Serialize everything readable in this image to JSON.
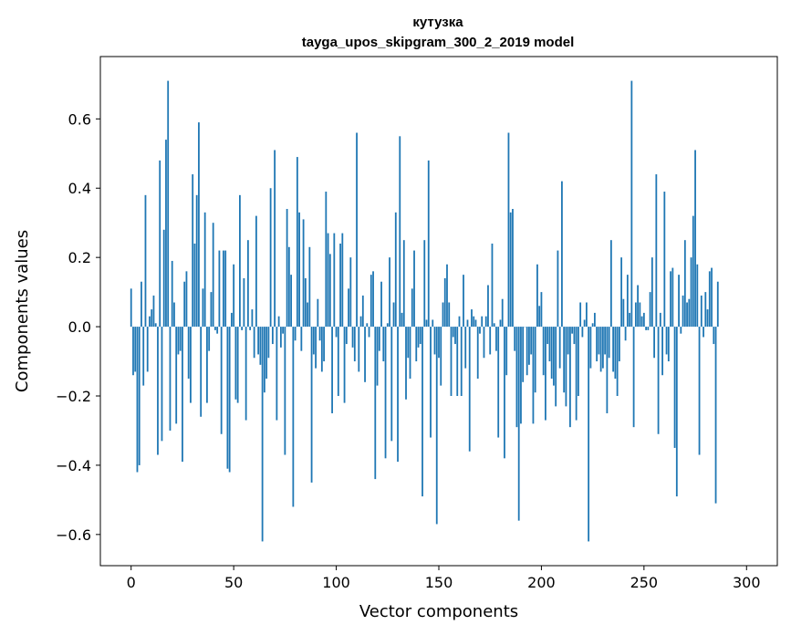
{
  "chart_data": {
    "type": "bar",
    "title_line1": "кутузка",
    "title_line2": "tayga_upos_skipgram_300_2_2019 model",
    "xlabel": "Vector components",
    "ylabel": "Components values",
    "xlim": [
      -15,
      315
    ],
    "ylim": [
      -0.69,
      0.78
    ],
    "xticks": [
      0,
      50,
      100,
      150,
      200,
      250,
      300
    ],
    "xtick_labels": [
      "0",
      "50",
      "100",
      "150",
      "200",
      "250",
      "300"
    ],
    "yticks": [
      -0.6,
      -0.4,
      -0.2,
      0.0,
      0.2,
      0.4,
      0.6
    ],
    "ytick_labels": [
      "−0.6",
      "−0.4",
      "−0.2",
      "0.0",
      "0.2",
      "0.4",
      "0.6"
    ],
    "bar_color": "#1f77b4",
    "values": [
      0.11,
      -0.14,
      -0.13,
      -0.42,
      -0.4,
      0.13,
      -0.17,
      0.38,
      -0.13,
      0.03,
      0.05,
      0.09,
      0.01,
      -0.37,
      0.48,
      -0.33,
      0.28,
      0.54,
      0.71,
      -0.3,
      0.19,
      0.07,
      -0.28,
      -0.08,
      -0.07,
      -0.39,
      0.13,
      0.16,
      -0.15,
      -0.22,
      0.44,
      0.24,
      0.38,
      0.59,
      -0.26,
      0.11,
      0.33,
      -0.22,
      -0.07,
      0.1,
      0.3,
      -0.01,
      -0.02,
      0.22,
      -0.31,
      0.22,
      0.22,
      -0.41,
      -0.42,
      0.04,
      0.18,
      -0.21,
      -0.22,
      0.38,
      -0.01,
      0.14,
      -0.27,
      0.25,
      -0.01,
      0.05,
      -0.09,
      0.32,
      -0.08,
      -0.11,
      -0.62,
      -0.19,
      -0.15,
      -0.09,
      0.4,
      -0.05,
      0.51,
      -0.27,
      0.03,
      -0.06,
      -0.02,
      -0.37,
      0.34,
      0.23,
      0.15,
      -0.52,
      -0.04,
      0.49,
      0.33,
      -0.07,
      0.31,
      0.14,
      0.07,
      0.23,
      -0.45,
      -0.08,
      -0.12,
      0.08,
      -0.04,
      -0.13,
      -0.1,
      0.39,
      0.27,
      0.21,
      -0.25,
      0.27,
      -0.03,
      -0.2,
      0.24,
      0.27,
      -0.22,
      -0.05,
      0.11,
      0.2,
      -0.06,
      -0.1,
      0.56,
      -0.13,
      0.03,
      0.09,
      -0.16,
      0.01,
      -0.03,
      0.15,
      0.16,
      -0.44,
      -0.17,
      -0.07,
      0.13,
      -0.1,
      -0.38,
      0.01,
      0.2,
      -0.33,
      0.07,
      0.33,
      -0.39,
      0.55,
      0.04,
      0.25,
      -0.21,
      -0.09,
      -0.15,
      0.11,
      0.22,
      -0.1,
      -0.06,
      -0.05,
      -0.49,
      0.25,
      0.02,
      0.48,
      -0.32,
      0.02,
      -0.08,
      -0.57,
      -0.09,
      -0.17,
      0.07,
      0.14,
      0.18,
      0.07,
      -0.2,
      -0.03,
      -0.05,
      -0.2,
      0.03,
      -0.2,
      0.15,
      -0.12,
      0.02,
      -0.36,
      0.05,
      0.03,
      0.02,
      -0.15,
      -0.02,
      0.03,
      -0.09,
      0.03,
      0.12,
      -0.08,
      0.24,
      0.01,
      -0.07,
      -0.32,
      0.02,
      0.08,
      -0.38,
      -0.14,
      0.56,
      0.33,
      0.34,
      -0.07,
      -0.29,
      -0.56,
      -0.28,
      -0.16,
      0.0,
      -0.14,
      -0.11,
      -0.08,
      -0.28,
      -0.19,
      0.18,
      0.06,
      0.1,
      -0.14,
      -0.27,
      -0.05,
      -0.1,
      -0.15,
      -0.17,
      -0.23,
      0.22,
      -0.12,
      0.42,
      -0.19,
      -0.23,
      -0.08,
      -0.29,
      -0.02,
      -0.05,
      -0.27,
      -0.2,
      0.07,
      -0.03,
      0.02,
      0.07,
      -0.62,
      -0.12,
      0.01,
      0.04,
      -0.1,
      -0.08,
      -0.13,
      -0.12,
      -0.08,
      -0.25,
      -0.09,
      0.25,
      -0.13,
      -0.15,
      -0.2,
      -0.1,
      0.2,
      0.08,
      -0.04,
      0.15,
      0.04,
      0.71,
      -0.29,
      0.07,
      0.12,
      0.07,
      0.03,
      0.04,
      -0.01,
      -0.01,
      0.1,
      0.2,
      -0.09,
      0.44,
      -0.31,
      0.04,
      -0.14,
      0.39,
      -0.08,
      -0.1,
      0.16,
      0.17,
      -0.35,
      -0.49,
      0.15,
      -0.02,
      0.09,
      0.25,
      0.07,
      0.08,
      0.2,
      0.32,
      0.51,
      0.18,
      -0.37,
      0.09,
      -0.03,
      0.1,
      0.05,
      0.16,
      0.17,
      -0.05,
      -0.51,
      0.13
    ]
  }
}
